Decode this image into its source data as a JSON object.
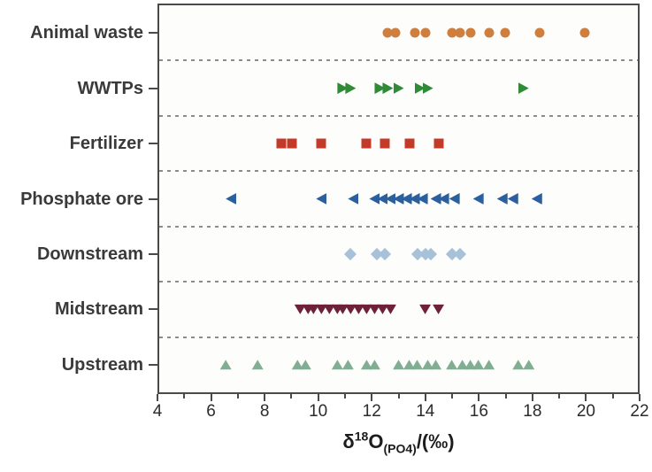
{
  "chart_data": {
    "type": "scatter",
    "xlabel": {
      "delta": "δ",
      "sup": "18",
      "o": "O",
      "sub": "(PO4)",
      "rest": "/(‰)"
    },
    "x_axis": {
      "min": 4,
      "max": 22,
      "major_ticks": [
        4,
        6,
        8,
        10,
        12,
        14,
        16,
        18,
        20,
        22
      ],
      "minor_ticks": [
        5,
        7,
        9,
        11,
        13,
        15,
        17,
        19,
        21
      ]
    },
    "layout": {
      "legend": "none",
      "grid": "off",
      "row_separators": "dashed-gray",
      "frame_color": "#4a4a4a",
      "separator_color": "#8c8c8c",
      "label_color": "#3a3a3a",
      "tick_label_color": "#2b2b2b"
    },
    "categories": [
      {
        "label": "Animal waste",
        "slug": "animal-waste",
        "marker": "circle",
        "color": "#CE7F3E",
        "values": [
          12.6,
          12.9,
          13.6,
          14.0,
          15.0,
          15.3,
          15.7,
          16.4,
          17.0,
          18.3,
          20.0
        ]
      },
      {
        "label": "WWTPs",
        "slug": "wwtps",
        "marker": "triangle-right",
        "color": "#2F8B35",
        "values": [
          10.9,
          11.2,
          12.3,
          12.6,
          13.0,
          13.8,
          14.1,
          17.7
        ]
      },
      {
        "label": "Fertilizer",
        "slug": "fertilizer",
        "marker": "square",
        "color": "#C33A28",
        "values": [
          8.6,
          9.0,
          10.1,
          11.8,
          12.5,
          13.4,
          14.5
        ]
      },
      {
        "label": "Phosphate ore",
        "slug": "phosphate-ore",
        "marker": "triangle-left",
        "color": "#2B5F9E",
        "values": [
          6.7,
          10.1,
          11.3,
          12.1,
          12.4,
          12.7,
          13.0,
          13.3,
          13.6,
          13.9,
          14.4,
          14.7,
          15.1,
          16.0,
          16.9,
          17.3,
          18.2
        ]
      },
      {
        "label": "Downstream",
        "slug": "downstream",
        "marker": "diamond",
        "color": "#A7C1D9",
        "values": [
          11.2,
          12.2,
          12.5,
          13.7,
          14.0,
          14.2,
          15.0,
          15.3
        ]
      },
      {
        "label": "Midstream",
        "slug": "midstream",
        "marker": "triangle-down",
        "color": "#6E2239",
        "values": [
          9.3,
          9.6,
          9.8,
          10.1,
          10.4,
          10.7,
          10.9,
          11.2,
          11.5,
          11.8,
          12.1,
          12.4,
          12.7,
          14.0,
          14.5
        ]
      },
      {
        "label": "Upstream",
        "slug": "upstream",
        "marker": "triangle-up",
        "color": "#81AE93",
        "values": [
          6.5,
          7.7,
          9.2,
          9.5,
          10.7,
          11.1,
          11.8,
          12.1,
          13.0,
          13.4,
          13.7,
          14.1,
          14.4,
          15.0,
          15.4,
          15.7,
          16.0,
          16.4,
          17.5,
          17.9
        ]
      }
    ]
  }
}
